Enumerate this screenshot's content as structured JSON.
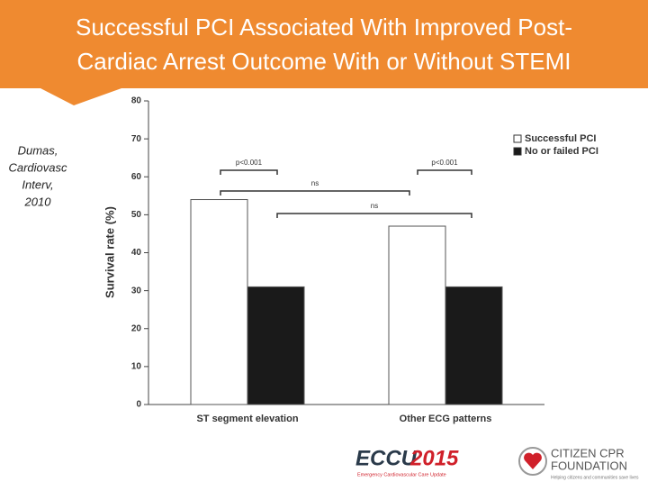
{
  "title": "Successful PCI Associated With Improved Post-Cardiac Arrest Outcome With or Without STEMI",
  "citation": [
    "Dumas,",
    "Cardiovasc",
    "Interv,",
    "2010"
  ],
  "footer": {
    "eccu": "ECCU",
    "eccu_year": "2015",
    "eccu_sub": "Emergency Cardiovascular Care Update",
    "ccpr": "CITIZEN CPR",
    "ccpr2": "FOUNDATION",
    "ccpr_sub": "Helping citizens and communities save lives"
  },
  "chart_data": {
    "type": "bar",
    "y_label": "Survival rate (%)",
    "categories": [
      "ST segment elevation",
      "Other ECG patterns"
    ],
    "series": [
      {
        "name": "Successful PCI",
        "color": "#ffffff",
        "values": [
          54,
          47
        ]
      },
      {
        "name": "No or failed PCI",
        "color": "#1a1a1a",
        "values": [
          31,
          31
        ]
      }
    ],
    "ylim": [
      0,
      80
    ],
    "yticks": [
      0,
      10,
      20,
      30,
      40,
      50,
      60,
      70,
      80
    ],
    "annotations": [
      "p<0.001",
      "p<0.001",
      "ns",
      "ns"
    ]
  }
}
